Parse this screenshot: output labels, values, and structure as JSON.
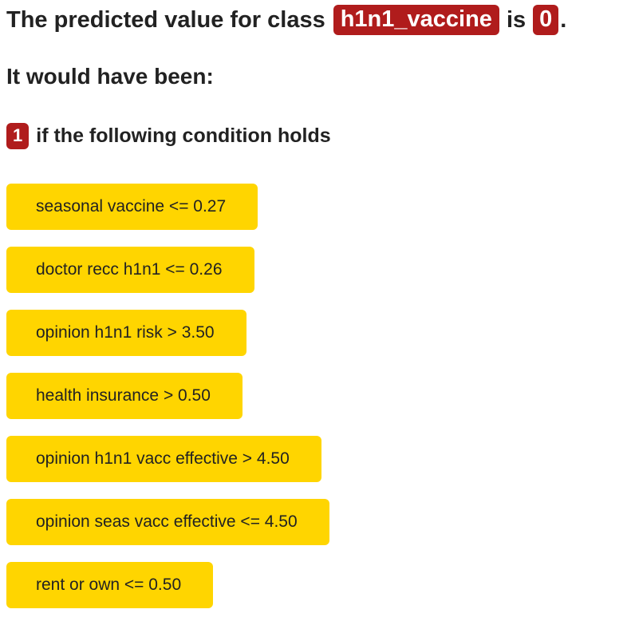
{
  "header": {
    "prefix": "The predicted value for class",
    "class_name": "h1n1_vaccine",
    "middle": "is",
    "predicted_value": "0",
    "suffix": "."
  },
  "subheading": "It would have been:",
  "alternative": {
    "value": "1",
    "text": "if the following condition holds"
  },
  "conditions": [
    "seasonal vaccine <= 0.27",
    "doctor recc h1n1 <= 0.26",
    "opinion h1n1 risk > 3.50",
    "health insurance > 0.50",
    "opinion h1n1 vacc effective > 4.50",
    "opinion seas vacc effective <= 4.50",
    "rent or own <= 0.50"
  ],
  "colors": {
    "badge": "#b01c1c",
    "condition_background": "#ffd500",
    "text": "#222222"
  }
}
